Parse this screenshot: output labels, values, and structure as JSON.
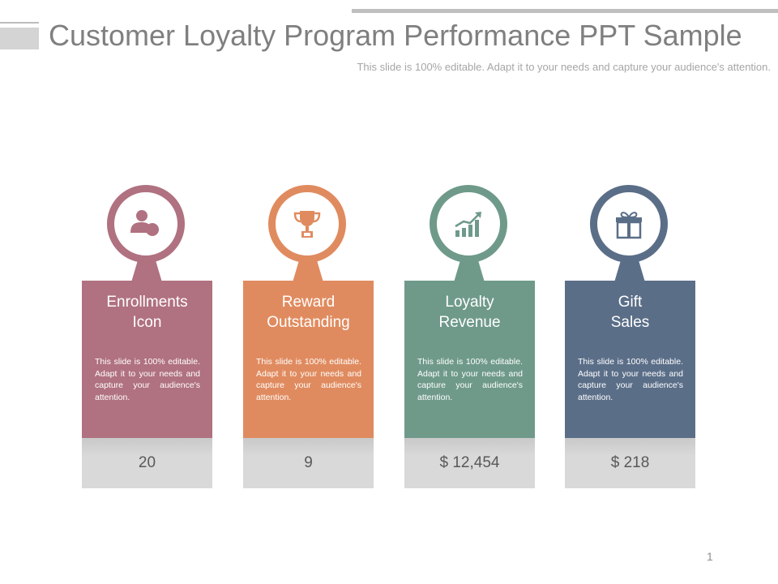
{
  "slide": {
    "title": "Customer Loyalty Program Performance PPT Sample",
    "subtitle": "This slide is 100% editable. Adapt it to your needs and capture your audience's attention.",
    "page_number": "1"
  },
  "cards": [
    {
      "heading_line1": "Enrollments",
      "heading_line2": "Icon",
      "description": "This slide is 100% editable. Adapt it to your needs and capture your audience's attention.",
      "value": "20",
      "color": "#b07180",
      "icon": "user-icon"
    },
    {
      "heading_line1": "Reward",
      "heading_line2": "Outstanding",
      "description": "This slide is 100% editable. Adapt it to your needs and capture your audience's attention.",
      "value": "9",
      "color": "#e08b5f",
      "icon": "trophy-icon"
    },
    {
      "heading_line1": "Loyalty",
      "heading_line2": "Revenue",
      "description": "This slide is 100% editable. Adapt it to your needs and capture your audience's attention.",
      "value": "$ 12,454",
      "color": "#6f9a8a",
      "icon": "growth-chart-icon"
    },
    {
      "heading_line1": "Gift",
      "heading_line2": "Sales",
      "description": "This slide is 100% editable. Adapt it to your needs and capture your audience's attention.",
      "value": "$ 218",
      "color": "#5b6e88",
      "icon": "gift-icon"
    }
  ]
}
